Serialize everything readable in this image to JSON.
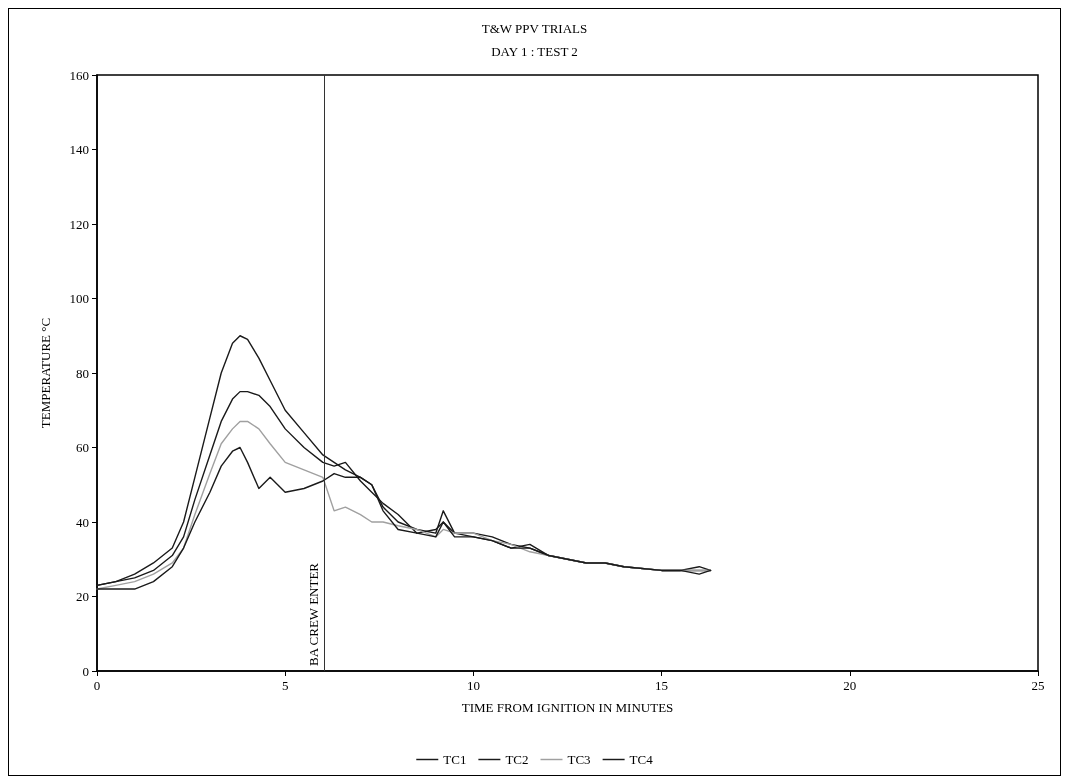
{
  "chart_data": {
    "type": "line",
    "title": "T&W PPV TRIALS",
    "subtitle": "DAY 1 : TEST 2",
    "xlabel": "TIME FROM IGNITION IN MINUTES",
    "ylabel": "TEMPERATURE °C",
    "xlim": [
      0,
      25
    ],
    "xticks": [
      0,
      5,
      10,
      15,
      20,
      25
    ],
    "ylim": [
      0,
      160
    ],
    "yticks": [
      0,
      20,
      40,
      60,
      80,
      100,
      120,
      140,
      160
    ],
    "grid": false,
    "legend": "bottom",
    "marker": "none",
    "line_style": "solid",
    "ref_lines": [
      {
        "axis": "x",
        "value": 6.05,
        "label": "BA CREW ENTER",
        "color": "#333333"
      }
    ],
    "series": [
      {
        "name": "TC1",
        "color": "#1a1a1a",
        "x": [
          0,
          0.5,
          1,
          1.5,
          2,
          2.3,
          2.6,
          3,
          3.3,
          3.6,
          3.8,
          4,
          4.3,
          4.6,
          5,
          5.5,
          6,
          6.3,
          6.6,
          7,
          7.3,
          7.6,
          8,
          8.5,
          9,
          9.2,
          9.5,
          10,
          10.5,
          11,
          11.5,
          12,
          12.5,
          13,
          13.5,
          14,
          15,
          15.5,
          16,
          16.3
        ],
        "values": [
          23,
          24,
          26,
          29,
          33,
          40,
          52,
          68,
          80,
          88,
          90,
          89,
          84,
          78,
          70,
          64,
          58,
          56,
          54,
          52,
          50,
          44,
          40,
          38,
          37,
          43,
          37,
          37,
          36,
          34,
          33,
          31,
          30,
          29,
          29,
          28,
          27,
          27,
          28,
          27
        ]
      },
      {
        "name": "TC2",
        "color": "#1a1a1a",
        "x": [
          0,
          0.5,
          1,
          1.5,
          2,
          2.3,
          2.6,
          3,
          3.3,
          3.6,
          3.8,
          4,
          4.3,
          4.6,
          5,
          5.5,
          6,
          6.3,
          6.6,
          7,
          7.3,
          7.6,
          8,
          8.5,
          9,
          9.2,
          9.5,
          10,
          10.5,
          11,
          11.5,
          12,
          12.5,
          13,
          13.5,
          14,
          15,
          15.5,
          16,
          16.3
        ],
        "values": [
          23,
          24,
          25,
          27,
          31,
          36,
          46,
          58,
          67,
          73,
          75,
          75,
          74,
          71,
          65,
          60,
          56,
          55,
          56,
          51,
          48,
          45,
          42,
          37,
          38,
          40,
          37,
          36,
          35,
          33,
          34,
          31,
          30,
          29,
          29,
          28,
          27,
          27,
          27,
          27
        ]
      },
      {
        "name": "TC3",
        "color": "#a0a0a0",
        "x": [
          0,
          0.5,
          1,
          1.5,
          2,
          2.3,
          2.6,
          3,
          3.3,
          3.6,
          3.8,
          4,
          4.3,
          4.6,
          5,
          5.5,
          6,
          6.3,
          6.6,
          7,
          7.3,
          7.6,
          8,
          8.5,
          9,
          9.2,
          9.5,
          10,
          10.5,
          11,
          11.5,
          12,
          12.5,
          13,
          13.5,
          14,
          15,
          15.5,
          16,
          16.3
        ],
        "values": [
          22,
          23,
          24,
          26,
          29,
          33,
          42,
          53,
          61,
          65,
          67,
          67,
          65,
          61,
          56,
          54,
          52,
          43,
          44,
          42,
          40,
          40,
          39,
          38,
          36,
          38,
          37,
          37,
          35,
          34,
          32,
          31,
          30,
          29,
          29,
          28,
          27,
          27,
          27,
          27
        ]
      },
      {
        "name": "TC4",
        "color": "#1a1a1a",
        "x": [
          0,
          0.5,
          1,
          1.5,
          2,
          2.3,
          2.6,
          3,
          3.3,
          3.6,
          3.8,
          4,
          4.3,
          4.6,
          5,
          5.5,
          6,
          6.3,
          6.6,
          7,
          7.3,
          7.6,
          8,
          8.5,
          9,
          9.2,
          9.5,
          10,
          10.5,
          11,
          11.5,
          12,
          12.5,
          13,
          13.5,
          14,
          15,
          15.5,
          16,
          16.3
        ],
        "values": [
          22,
          22,
          22,
          24,
          28,
          33,
          40,
          48,
          55,
          59,
          60,
          56,
          49,
          52,
          48,
          49,
          51,
          53,
          52,
          52,
          50,
          43,
          38,
          37,
          36,
          40,
          36,
          36,
          35,
          33,
          33,
          31,
          30,
          29,
          29,
          28,
          27,
          27,
          26,
          27
        ]
      }
    ]
  }
}
